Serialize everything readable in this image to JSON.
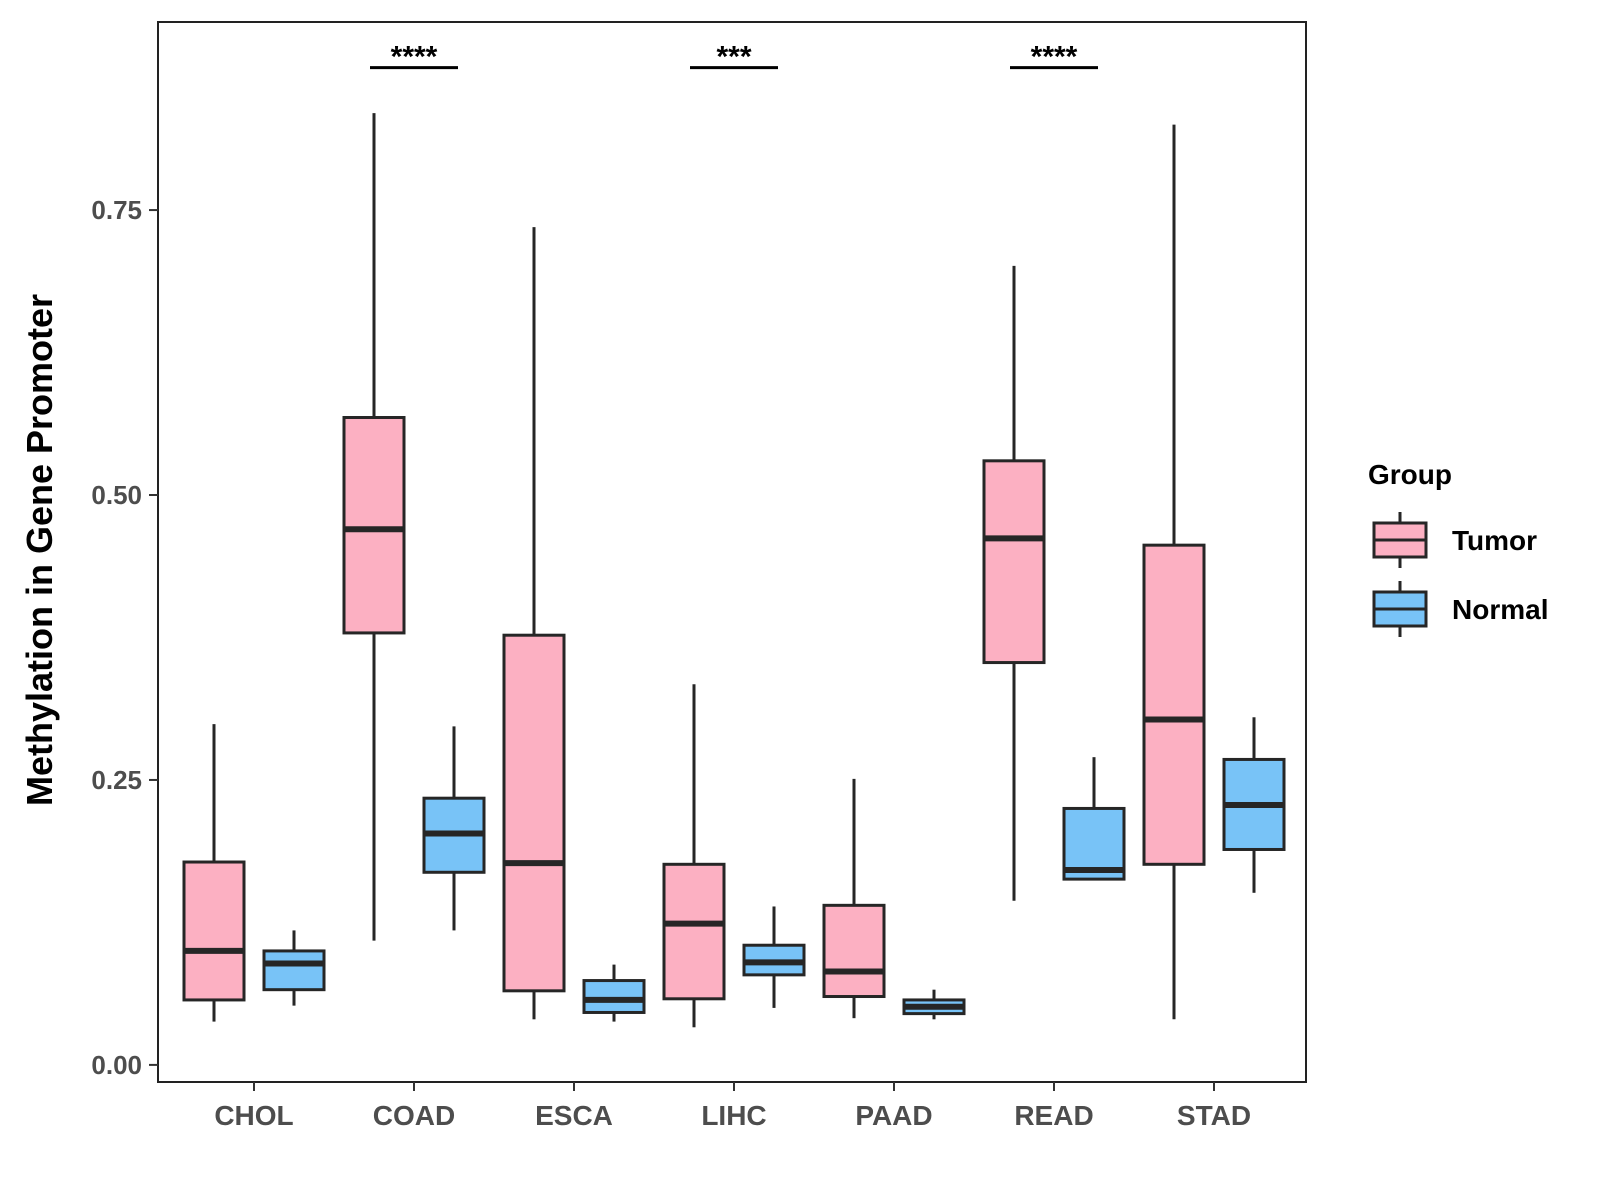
{
  "chart_data": {
    "type": "boxplot",
    "title": "",
    "xlabel": "",
    "ylabel": "Methylation in Gene Promoter",
    "ylim": [
      -0.015,
      0.915
    ],
    "yticks": [
      {
        "value": 0.0,
        "label": "0.00"
      },
      {
        "value": 0.25,
        "label": "0.25"
      },
      {
        "value": 0.5,
        "label": "0.50"
      },
      {
        "value": 0.75,
        "label": "0.75"
      }
    ],
    "categories": [
      "CHOL",
      "COAD",
      "ESCA",
      "LIHC",
      "PAAD",
      "READ",
      "STAD"
    ],
    "legend": {
      "title": "Group",
      "position": "right",
      "entries": [
        {
          "name": "Tumor",
          "color": "#FCB0C2"
        },
        {
          "name": "Normal",
          "color": "#78C3F7"
        }
      ]
    },
    "series": [
      {
        "name": "Tumor",
        "color": "#FCB0C2",
        "boxes": [
          {
            "category": "CHOL",
            "min": 0.038,
            "q1": 0.057,
            "median": 0.1,
            "q3": 0.178,
            "max": 0.299
          },
          {
            "category": "COAD",
            "min": 0.109,
            "q1": 0.379,
            "median": 0.47,
            "q3": 0.568,
            "max": 0.835
          },
          {
            "category": "ESCA",
            "min": 0.04,
            "q1": 0.065,
            "median": 0.177,
            "q3": 0.377,
            "max": 0.735
          },
          {
            "category": "LIHC",
            "min": 0.033,
            "q1": 0.058,
            "median": 0.124,
            "q3": 0.176,
            "max": 0.334
          },
          {
            "category": "PAAD",
            "min": 0.041,
            "q1": 0.06,
            "median": 0.082,
            "q3": 0.14,
            "max": 0.251
          },
          {
            "category": "READ",
            "min": 0.144,
            "q1": 0.353,
            "median": 0.462,
            "q3": 0.53,
            "max": 0.701
          },
          {
            "category": "STAD",
            "min": 0.04,
            "q1": 0.176,
            "median": 0.303,
            "q3": 0.456,
            "max": 0.825
          }
        ]
      },
      {
        "name": "Normal",
        "color": "#78C3F7",
        "boxes": [
          {
            "category": "CHOL",
            "min": 0.052,
            "q1": 0.066,
            "median": 0.089,
            "q3": 0.1,
            "max": 0.118
          },
          {
            "category": "COAD",
            "min": 0.118,
            "q1": 0.169,
            "median": 0.203,
            "q3": 0.234,
            "max": 0.297
          },
          {
            "category": "ESCA",
            "min": 0.038,
            "q1": 0.046,
            "median": 0.057,
            "q3": 0.074,
            "max": 0.088
          },
          {
            "category": "LIHC",
            "min": 0.05,
            "q1": 0.079,
            "median": 0.09,
            "q3": 0.105,
            "max": 0.139
          },
          {
            "category": "PAAD",
            "min": 0.04,
            "q1": 0.045,
            "median": 0.051,
            "q3": 0.057,
            "max": 0.066
          },
          {
            "category": "READ",
            "min": 0.162,
            "q1": 0.163,
            "median": 0.171,
            "q3": 0.225,
            "max": 0.27
          },
          {
            "category": "STAD",
            "min": 0.151,
            "q1": 0.189,
            "median": 0.228,
            "q3": 0.268,
            "max": 0.305
          }
        ]
      }
    ],
    "annotations": [
      {
        "category": "COAD",
        "label": "****",
        "y": 0.875
      },
      {
        "category": "LIHC",
        "label": "***",
        "y": 0.875
      },
      {
        "category": "READ",
        "label": "****",
        "y": 0.875
      }
    ],
    "grid": false
  }
}
